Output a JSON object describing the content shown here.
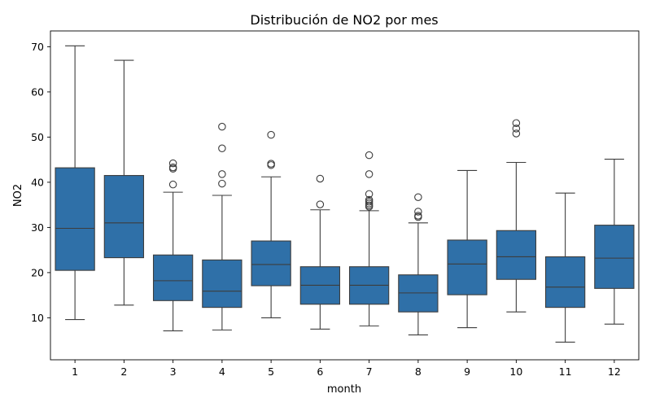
{
  "chart_data": {
    "type": "box",
    "title": "Distribución de NO2 por mes",
    "xlabel": "month",
    "ylabel": "NO2",
    "ylim": [
      0.7,
      73.5
    ],
    "yticks": [
      10,
      20,
      30,
      40,
      50,
      60,
      70
    ],
    "grid": false,
    "colors": {
      "box_fill": "#2f70a8",
      "line": "#3d3d3d",
      "axes": "#000000"
    },
    "categories": [
      "1",
      "2",
      "3",
      "4",
      "5",
      "6",
      "7",
      "8",
      "9",
      "10",
      "11",
      "12"
    ],
    "boxes": [
      {
        "category": "1",
        "whisker_low": 9.6,
        "q1": 20.5,
        "median": 29.8,
        "q3": 43.2,
        "whisker_high": 70.2,
        "outliers": []
      },
      {
        "category": "2",
        "whisker_low": 12.8,
        "q1": 23.3,
        "median": 31.0,
        "q3": 41.5,
        "whisker_high": 67.0,
        "outliers": []
      },
      {
        "category": "3",
        "whisker_low": 7.1,
        "q1": 13.8,
        "median": 18.2,
        "q3": 23.9,
        "whisker_high": 37.8,
        "outliers": [
          39.5,
          43.0,
          43.3,
          44.2
        ]
      },
      {
        "category": "4",
        "whisker_low": 7.3,
        "q1": 12.3,
        "median": 15.9,
        "q3": 22.8,
        "whisker_high": 37.1,
        "outliers": [
          39.7,
          41.8,
          47.5,
          52.3
        ]
      },
      {
        "category": "5",
        "whisker_low": 10.0,
        "q1": 17.1,
        "median": 21.8,
        "q3": 27.0,
        "whisker_high": 41.2,
        "outliers": [
          43.8,
          44.1,
          50.5
        ]
      },
      {
        "category": "6",
        "whisker_low": 7.5,
        "q1": 13.0,
        "median": 17.2,
        "q3": 21.3,
        "whisker_high": 33.9,
        "outliers": [
          35.1,
          40.8
        ]
      },
      {
        "category": "7",
        "whisker_low": 8.2,
        "q1": 13.0,
        "median": 17.2,
        "q3": 21.3,
        "whisker_high": 33.7,
        "outliers": [
          34.6,
          34.9,
          35.3,
          35.7,
          36.1,
          37.4,
          41.8,
          46.0
        ]
      },
      {
        "category": "8",
        "whisker_low": 6.2,
        "q1": 11.3,
        "median": 15.5,
        "q3": 19.5,
        "whisker_high": 31.0,
        "outliers": [
          32.3,
          32.6,
          33.5,
          36.7
        ]
      },
      {
        "category": "9",
        "whisker_low": 7.8,
        "q1": 15.1,
        "median": 21.9,
        "q3": 27.2,
        "whisker_high": 42.6,
        "outliers": []
      },
      {
        "category": "10",
        "whisker_low": 11.3,
        "q1": 18.5,
        "median": 23.5,
        "q3": 29.3,
        "whisker_high": 44.4,
        "outliers": [
          50.8,
          51.9,
          53.1
        ]
      },
      {
        "category": "11",
        "whisker_low": 4.6,
        "q1": 12.3,
        "median": 16.8,
        "q3": 23.5,
        "whisker_high": 37.6,
        "outliers": []
      },
      {
        "category": "12",
        "whisker_low": 8.6,
        "q1": 16.5,
        "median": 23.2,
        "q3": 30.5,
        "whisker_high": 45.1,
        "outliers": []
      }
    ]
  }
}
